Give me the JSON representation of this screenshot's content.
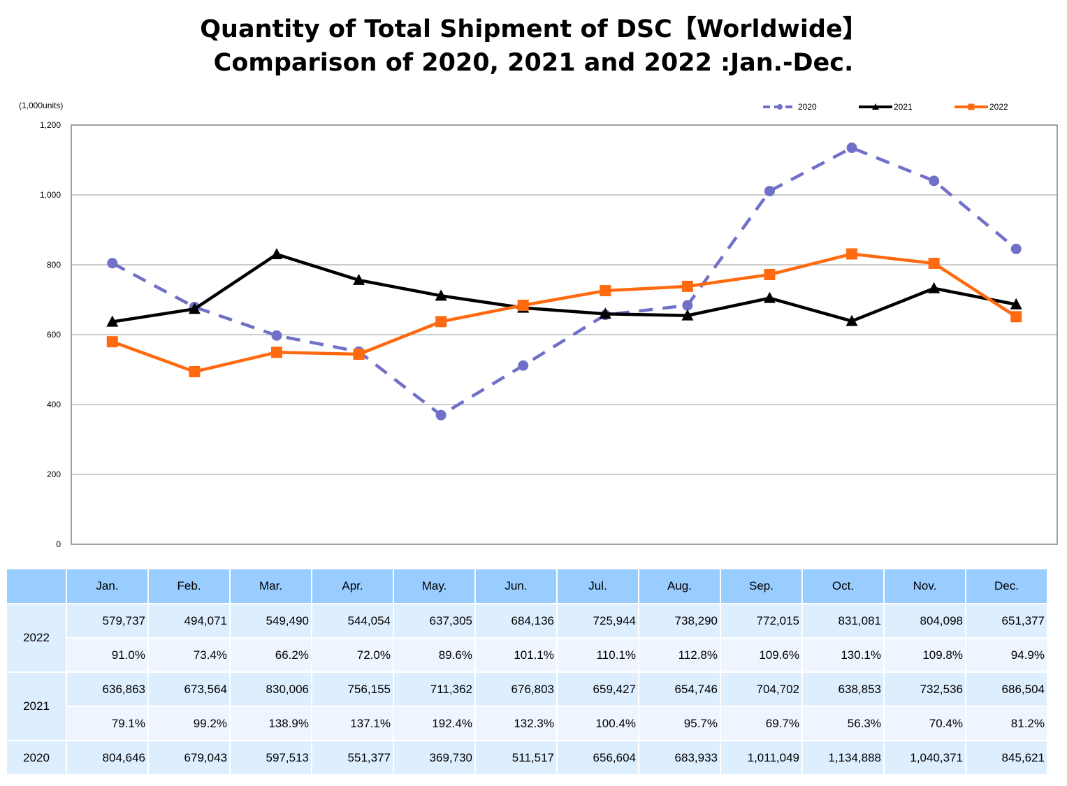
{
  "title_line1": "Quantity of Total Shipment of DSC【Worldwide】",
  "title_line2": "Comparison of 2020, 2021 and 2022 :Jan.-Dec.",
  "chart_data": {
    "type": "line",
    "unit_label": "(1,000units)",
    "categories": [
      "Jan.",
      "Feb.",
      "Mar.",
      "Apr.",
      "May.",
      "Jun.",
      "Jul.",
      "Aug.",
      "Sep.",
      "Oct.",
      "Nov.",
      "Dec."
    ],
    "ylim": [
      0,
      1200
    ],
    "yticks": [
      0,
      200,
      400,
      600,
      800,
      1000,
      1200
    ],
    "ytick_labels": [
      "0",
      "200",
      "400",
      "600",
      "800",
      "1,000",
      "1,200"
    ],
    "grid": true,
    "legend_position": "top-right",
    "series": [
      {
        "name": "2020",
        "color": "#7070c8",
        "style": "dashed",
        "marker": "circle",
        "values": [
          804.646,
          679.043,
          597.513,
          551.377,
          369.73,
          511.517,
          656.604,
          683.933,
          1011.049,
          1134.888,
          1040.371,
          845.621
        ]
      },
      {
        "name": "2021",
        "color": "#000000",
        "style": "solid",
        "marker": "triangle",
        "values": [
          636.863,
          673.564,
          830.006,
          756.155,
          711.362,
          676.803,
          659.427,
          654.746,
          704.702,
          638.853,
          732.536,
          686.504
        ]
      },
      {
        "name": "2022",
        "color": "#ff6a10",
        "style": "solid",
        "marker": "square",
        "values": [
          579.737,
          494.071,
          549.49,
          544.054,
          637.305,
          684.136,
          725.944,
          738.29,
          772.015,
          831.081,
          804.098,
          651.377
        ]
      }
    ]
  },
  "table": {
    "rows": [
      {
        "year": "2022",
        "values": [
          "579,737",
          "494,071",
          "549,490",
          "544,054",
          "637,305",
          "684,136",
          "725,944",
          "738,290",
          "772,015",
          "831,081",
          "804,098",
          "651,377"
        ],
        "percents": [
          "91.0%",
          "73.4%",
          "66.2%",
          "72.0%",
          "89.6%",
          "101.1%",
          "110.1%",
          "112.8%",
          "109.6%",
          "130.1%",
          "109.8%",
          "94.9%"
        ]
      },
      {
        "year": "2021",
        "values": [
          "636,863",
          "673,564",
          "830,006",
          "756,155",
          "711,362",
          "676,803",
          "659,427",
          "654,746",
          "704,702",
          "638,853",
          "732,536",
          "686,504"
        ],
        "percents": [
          "79.1%",
          "99.2%",
          "138.9%",
          "137.1%",
          "192.4%",
          "132.3%",
          "100.4%",
          "95.7%",
          "69.7%",
          "56.3%",
          "70.4%",
          "81.2%"
        ]
      },
      {
        "year": "2020",
        "values": [
          "804,646",
          "679,043",
          "597,513",
          "551,377",
          "369,730",
          "511,517",
          "656,604",
          "683,933",
          "1,011,049",
          "1,134,888",
          "1,040,371",
          "845,621"
        ]
      }
    ]
  }
}
